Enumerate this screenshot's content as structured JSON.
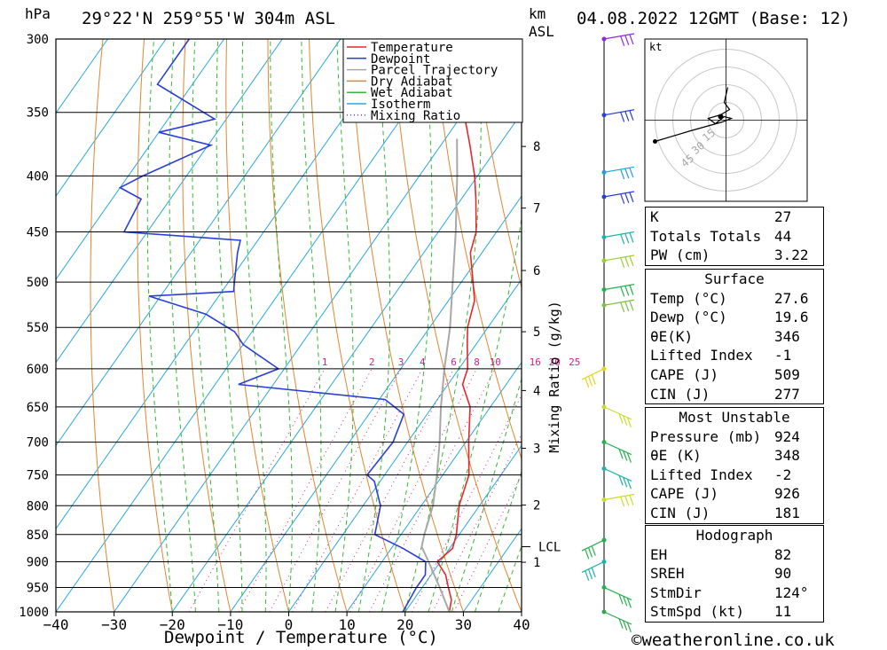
{
  "header": {
    "location": "29°22'N 259°55'W 304m ASL",
    "datetime": "04.08.2022 12GMT (Base: 12)",
    "pressure_unit": "hPa",
    "height_unit": "km",
    "height_ref": "ASL",
    "credit": "©weatheronline.co.uk"
  },
  "chart_data": {
    "type": "line",
    "subtype": "skew-T log-P sounding",
    "xlabel": "Dewpoint / Temperature (°C)",
    "xlim": [
      -40,
      40
    ],
    "x_ticks": [
      -40,
      -30,
      -20,
      -10,
      0,
      10,
      20,
      30,
      40
    ],
    "ylabel": "hPa",
    "ylim": [
      1000,
      300
    ],
    "y_ticks": [
      300,
      350,
      400,
      450,
      500,
      550,
      600,
      650,
      700,
      750,
      800,
      850,
      900,
      950,
      1000
    ],
    "y_scale": "log",
    "km_asl_axis": [
      {
        "label": "1",
        "p": 901
      },
      {
        "label": "2",
        "p": 799
      },
      {
        "label": "3",
        "p": 709
      },
      {
        "label": "4",
        "p": 628
      },
      {
        "label": "5",
        "p": 555
      },
      {
        "label": "6",
        "p": 488
      },
      {
        "label": "7",
        "p": 428
      },
      {
        "label": "8",
        "p": 376
      }
    ],
    "lcl_label": "LCL",
    "lcl_p": 872,
    "mixing_ratio_title": "Mixing Ratio (g/kg)",
    "mixing_ratio_labels": [
      "1",
      "2",
      "3",
      "4",
      "6",
      "8",
      "10",
      "16",
      "20",
      "25"
    ],
    "legend": [
      "Temperature",
      "Dewpoint",
      "Parcel Trajectory",
      "Dry Adiabat",
      "Wet Adiabat",
      "Isotherm",
      "Mixing Ratio"
    ],
    "legend_position": "top-right",
    "colors": {
      "temperature": "#e8262b",
      "dewpoint": "#2a3fd6",
      "parcel": "#a8a8a8",
      "dry_adiabat": "#e0862f",
      "wet_adiabat": "#35b835",
      "isotherm": "#2aa7e0",
      "mixing_ratio": "#d8208a"
    },
    "series": [
      {
        "name": "Temperature",
        "points": [
          [
            1000,
            27.6
          ],
          [
            975,
            26.5
          ],
          [
            950,
            24.5
          ],
          [
            925,
            22.5
          ],
          [
            900,
            19.5
          ],
          [
            875,
            20.5
          ],
          [
            850,
            19.5
          ],
          [
            800,
            16.5
          ],
          [
            750,
            14.5
          ],
          [
            700,
            10.5
          ],
          [
            650,
            6.5
          ],
          [
            620,
            2.5
          ],
          [
            600,
            1.5
          ],
          [
            570,
            -1.5
          ],
          [
            550,
            -3.5
          ],
          [
            520,
            -5.5
          ],
          [
            500,
            -8.0
          ],
          [
            470,
            -12.0
          ],
          [
            450,
            -13.5
          ],
          [
            420,
            -17.5
          ],
          [
            400,
            -20.5
          ],
          [
            375,
            -25.0
          ],
          [
            350,
            -30.0
          ],
          [
            325,
            -33.5
          ],
          [
            300,
            -38.0
          ]
        ]
      },
      {
        "name": "Dewpoint",
        "points": [
          [
            1000,
            19.6
          ],
          [
            950,
            19.0
          ],
          [
            925,
            19.0
          ],
          [
            900,
            17.5
          ],
          [
            875,
            12.0
          ],
          [
            850,
            5.5
          ],
          [
            800,
            3.0
          ],
          [
            760,
            -1.0
          ],
          [
            750,
            -3.0
          ],
          [
            700,
            -2.5
          ],
          [
            660,
            -4.0
          ],
          [
            640,
            -9.0
          ],
          [
            620,
            -36.0
          ],
          [
            600,
            -31.0
          ],
          [
            580,
            -37.0
          ],
          [
            570,
            -40.0
          ],
          [
            555,
            -43.0
          ],
          [
            535,
            -50.0
          ],
          [
            515,
            -62.0
          ],
          [
            510,
            -48.0
          ],
          [
            500,
            -49.0
          ],
          [
            470,
            -52.0
          ],
          [
            458,
            -53.0
          ],
          [
            450,
            -74.0
          ],
          [
            420,
            -75.0
          ],
          [
            410,
            -80.0
          ],
          [
            400,
            -77.5
          ],
          [
            375,
            -69.5
          ],
          [
            365,
            -80.0
          ],
          [
            355,
            -72.0
          ],
          [
            330,
            -86.0
          ],
          [
            300,
            -86.0
          ]
        ]
      },
      {
        "name": "Parcel Trajectory",
        "points": [
          [
            1000,
            27.6
          ],
          [
            950,
            23.0
          ],
          [
            900,
            18.0
          ],
          [
            872,
            15.0
          ],
          [
            850,
            14.0
          ],
          [
            800,
            12.0
          ],
          [
            750,
            9.0
          ],
          [
            700,
            5.5
          ],
          [
            650,
            1.5
          ],
          [
            600,
            -2.5
          ],
          [
            550,
            -6.5
          ],
          [
            500,
            -11.5
          ],
          [
            450,
            -17.0
          ],
          [
            400,
            -23.5
          ],
          [
            370,
            -28.0
          ]
        ]
      }
    ],
    "hodograph": {
      "unit": "kt",
      "ring_labels": [
        "15",
        "30",
        "45"
      ]
    }
  },
  "indices": {
    "rows": [
      {
        "key": "K",
        "value": "27"
      },
      {
        "key": "Totals Totals",
        "value": "44"
      },
      {
        "key": "PW (cm)",
        "value": "3.22"
      }
    ]
  },
  "surface": {
    "title": "Surface",
    "rows": [
      {
        "key": "Temp (°C)",
        "value": "27.6"
      },
      {
        "key": "Dewp (°C)",
        "value": "19.6"
      },
      {
        "key": "θE(K)",
        "value": "346"
      },
      {
        "key": "Lifted Index",
        "value": "-1"
      },
      {
        "key": "CAPE (J)",
        "value": "509"
      },
      {
        "key": "CIN (J)",
        "value": "277"
      }
    ]
  },
  "most_unstable": {
    "title": "Most Unstable",
    "rows": [
      {
        "key": "Pressure (mb)",
        "value": "924"
      },
      {
        "key": "θE (K)",
        "value": "348"
      },
      {
        "key": "Lifted Index",
        "value": "-2"
      },
      {
        "key": "CAPE (J)",
        "value": "926"
      },
      {
        "key": "CIN (J)",
        "value": "181"
      }
    ]
  },
  "hodograph_table": {
    "title": "Hodograph",
    "rows": [
      {
        "key": "EH",
        "value": "82"
      },
      {
        "key": "SREH",
        "value": "90"
      },
      {
        "key": "StmDir",
        "value": "124°"
      },
      {
        "key": "StmSpd (kt)",
        "value": "11"
      }
    ]
  }
}
